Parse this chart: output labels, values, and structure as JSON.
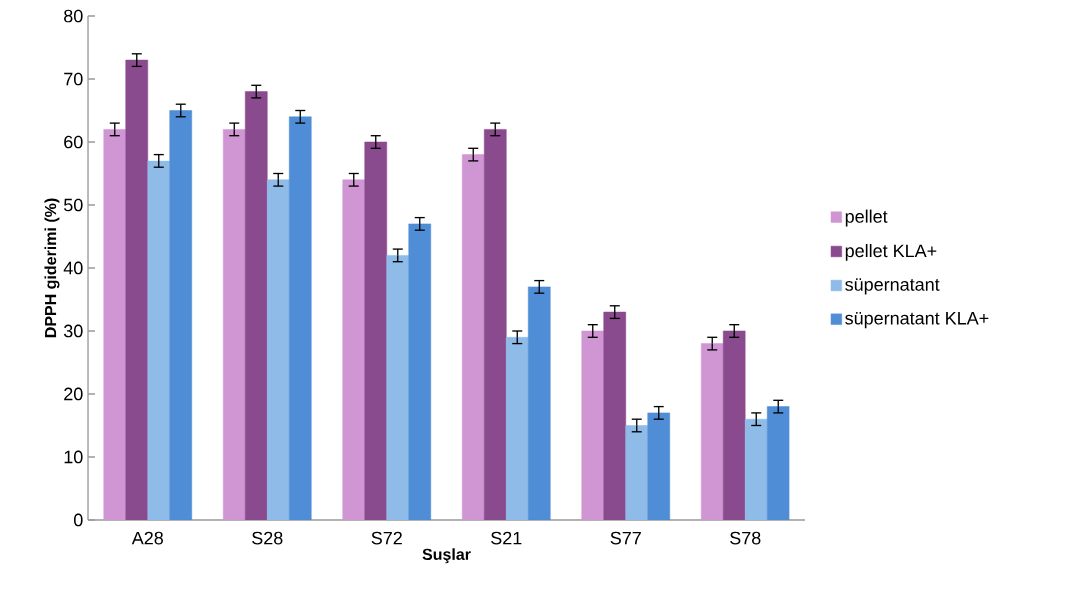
{
  "chart_data": {
    "type": "bar",
    "xlabel": "Suşlar",
    "ylabel": "DPPH giderimi (%)",
    "categories": [
      "A28",
      "S28",
      "S72",
      "S21",
      "S77",
      "S78"
    ],
    "series": [
      {
        "name": "pellet",
        "color": "#cf96d3",
        "values": [
          62,
          62,
          54,
          58,
          30,
          28
        ],
        "errors": [
          1,
          1,
          1,
          1,
          1,
          1
        ]
      },
      {
        "name": "pellet KLA+",
        "color": "#8a4a8e",
        "values": [
          73,
          68,
          60,
          62,
          33,
          30
        ],
        "errors": [
          1,
          1,
          1,
          1,
          1,
          1
        ]
      },
      {
        "name": "süpernatant",
        "color": "#8fbbe9",
        "values": [
          57,
          54,
          42,
          29,
          15,
          16
        ],
        "errors": [
          1,
          1,
          1,
          1,
          1,
          1
        ]
      },
      {
        "name": "süpernatant KLA+",
        "color": "#4f8ed6",
        "values": [
          65,
          64,
          47,
          37,
          17,
          18
        ],
        "errors": [
          1,
          1,
          1,
          1,
          1,
          1
        ]
      }
    ],
    "ylim": [
      0,
      80
    ],
    "yticks": [
      0,
      10,
      20,
      30,
      40,
      50,
      60,
      70,
      80
    ],
    "legend": "right"
  }
}
